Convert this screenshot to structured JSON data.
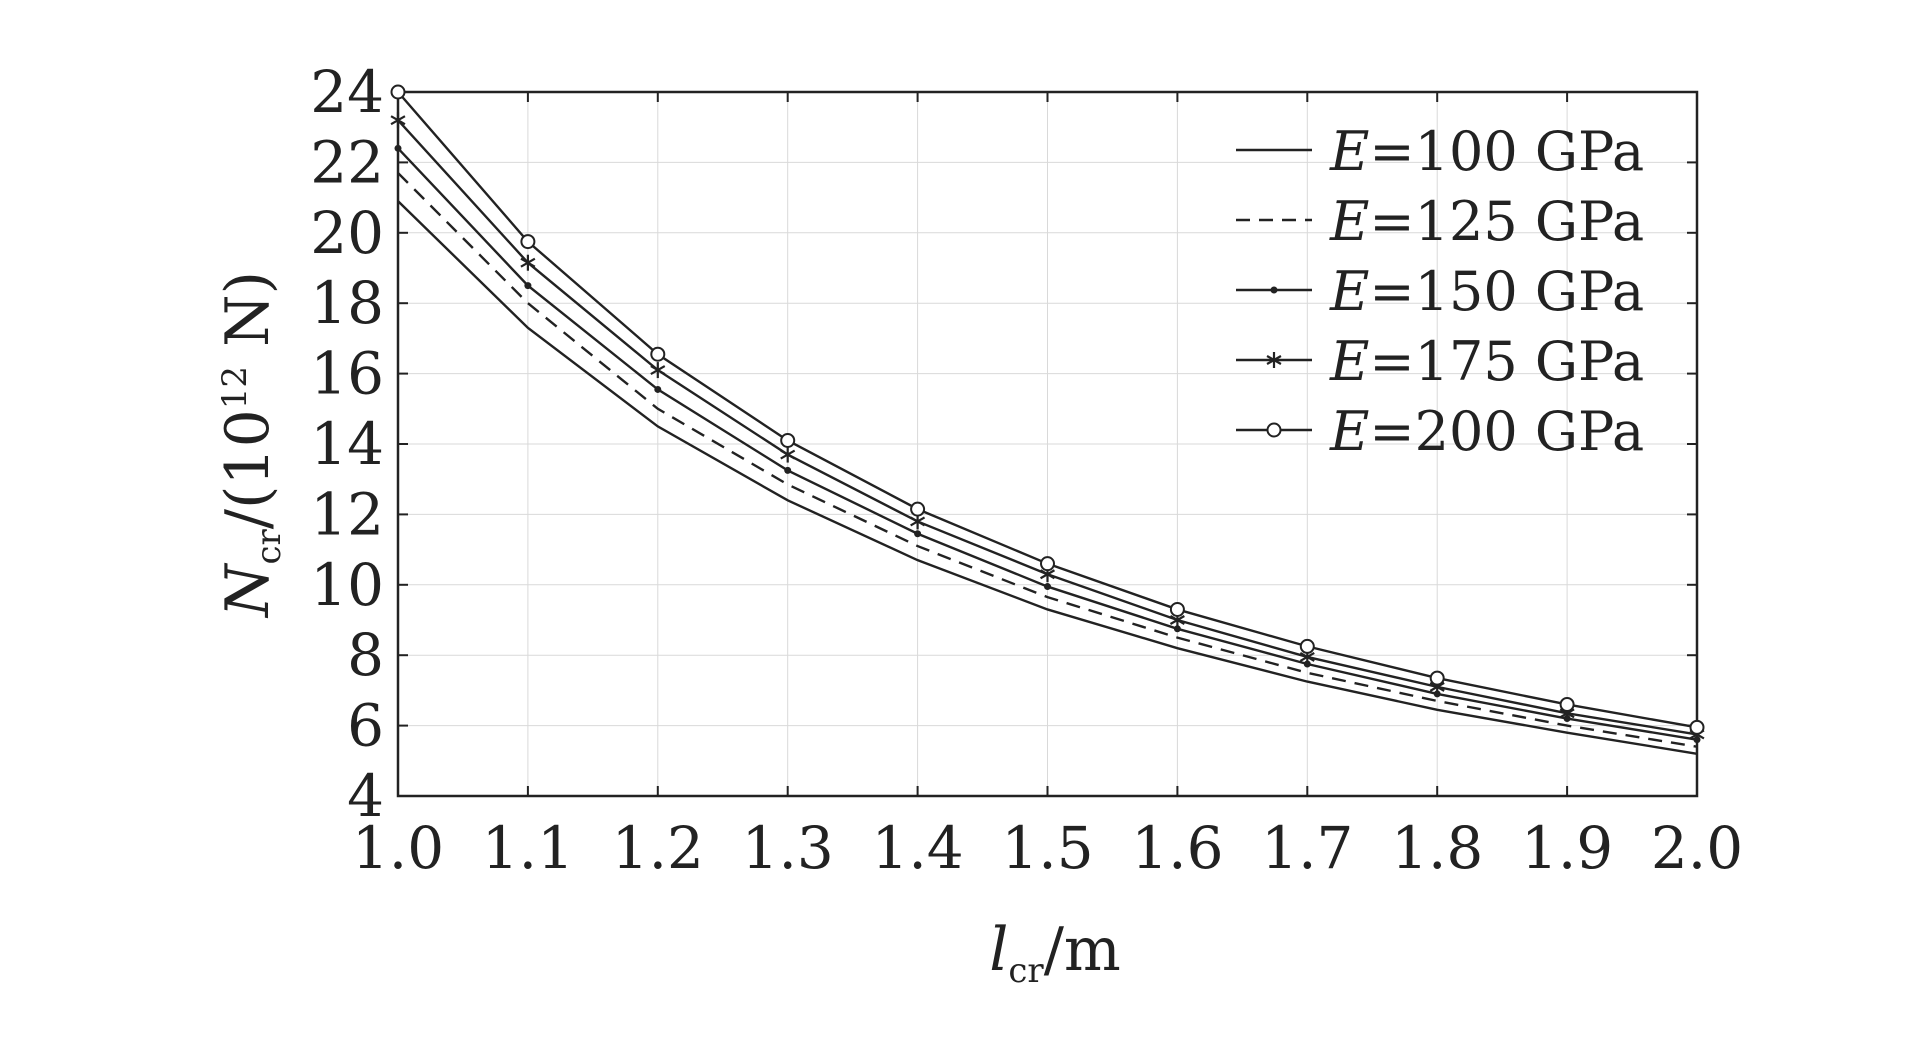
{
  "chart_data": {
    "type": "line",
    "x": [
      1.0,
      1.1,
      1.2,
      1.3,
      1.4,
      1.5,
      1.6,
      1.7,
      1.8,
      1.9,
      2.0
    ],
    "xlim": [
      1.0,
      2.0
    ],
    "ylim": [
      4,
      24
    ],
    "xticks": [
      "1.0",
      "1.1",
      "1.2",
      "1.3",
      "1.4",
      "1.5",
      "1.6",
      "1.7",
      "1.8",
      "1.9",
      "2.0"
    ],
    "yticks": [
      "4",
      "6",
      "8",
      "10",
      "12",
      "14",
      "16",
      "18",
      "20",
      "22",
      "24"
    ],
    "grid": true,
    "legend_position": "top-right",
    "xlabel": {
      "symbol": "l",
      "sub": "cr",
      "unit": "/m"
    },
    "ylabel": {
      "symbol": "N",
      "sub": "cr",
      "prefix": "/(10",
      "sup": "12",
      "suffix": " N)"
    },
    "series": [
      {
        "name": "E=100 GPa",
        "marker": "none",
        "dash": "solid",
        "values": [
          20.9,
          17.3,
          14.5,
          12.4,
          10.7,
          9.3,
          8.2,
          7.25,
          6.45,
          5.8,
          5.2
        ]
      },
      {
        "name": "E=125 GPa",
        "marker": "none",
        "dash": "dashed",
        "values": [
          21.7,
          18.0,
          15.0,
          12.85,
          11.1,
          9.65,
          8.5,
          7.5,
          6.7,
          6.0,
          5.4
        ]
      },
      {
        "name": "E=150 GPa",
        "marker": "dot",
        "dash": "solid",
        "values": [
          22.4,
          18.5,
          15.55,
          13.25,
          11.45,
          9.95,
          8.75,
          7.75,
          6.9,
          6.2,
          5.6
        ]
      },
      {
        "name": "E=175 GPa",
        "marker": "asterisk",
        "dash": "solid",
        "values": [
          23.2,
          19.15,
          16.1,
          13.7,
          11.8,
          10.3,
          9.0,
          7.95,
          7.1,
          6.35,
          5.75
        ]
      },
      {
        "name": "E=200 GPa",
        "marker": "circle",
        "dash": "solid",
        "values": [
          24.0,
          19.75,
          16.55,
          14.1,
          12.15,
          10.6,
          9.3,
          8.25,
          7.35,
          6.6,
          5.95
        ]
      }
    ]
  }
}
